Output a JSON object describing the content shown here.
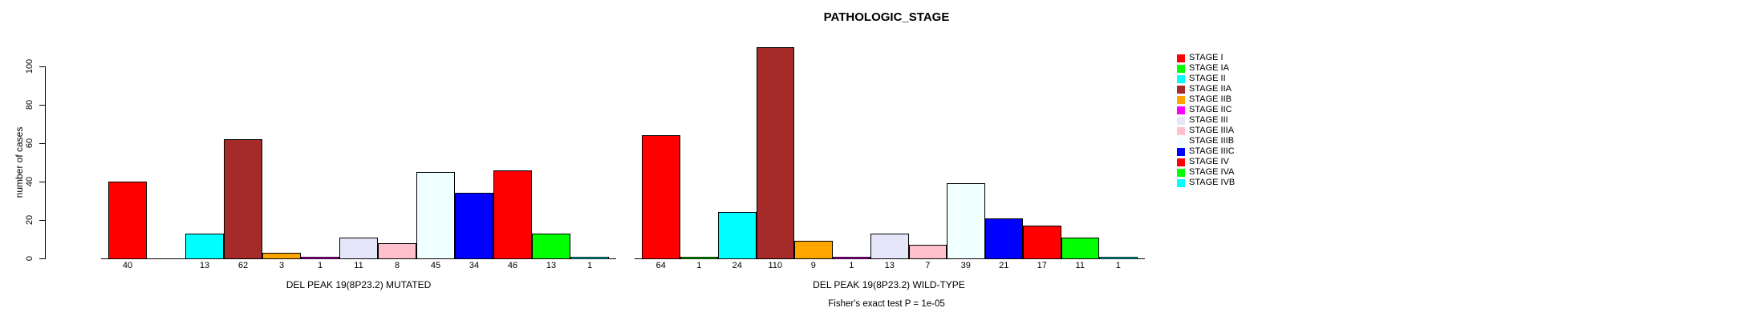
{
  "title": "PATHOLOGIC_STAGE",
  "footer": "Fisher's exact test P = 1e-05",
  "y_axis": {
    "label": "number of cases",
    "ticks": [
      0,
      20,
      40,
      60,
      80,
      100
    ]
  },
  "legend": {
    "entries": [
      {
        "label": "STAGE I",
        "color": "#FF0000"
      },
      {
        "label": "STAGE IA",
        "color": "#00FF00"
      },
      {
        "label": "STAGE II",
        "color": "#00FFFF"
      },
      {
        "label": "STAGE IIA",
        "color": "#A52A2A"
      },
      {
        "label": "STAGE IIB",
        "color": "#FFA500"
      },
      {
        "label": "STAGE IIC",
        "color": "#FF00FF"
      },
      {
        "label": "STAGE III",
        "color": "#E6E6FA"
      },
      {
        "label": "STAGE IIIA",
        "color": "#FFC0CB"
      },
      {
        "label": "STAGE IIIB",
        "color": "#F0FFFF"
      },
      {
        "label": "STAGE IIIC",
        "color": "#0000FF"
      },
      {
        "label": "STAGE IV",
        "color": "#FF0000"
      },
      {
        "label": "STAGE IVA",
        "color": "#00FF00"
      },
      {
        "label": "STAGE IVB",
        "color": "#00FFFF"
      }
    ]
  },
  "chart_data": [
    {
      "type": "bar",
      "xlabel": "DEL PEAK 19(8P23.2) MUTATED",
      "ylabel": "number of cases",
      "ylim": [
        0,
        100
      ],
      "grid": false,
      "legend_position": "right",
      "categories": [
        "STAGE I",
        "STAGE IA",
        "STAGE II",
        "STAGE IIA",
        "STAGE IIB",
        "STAGE IIC",
        "STAGE III",
        "STAGE IIIA",
        "STAGE IIIB",
        "STAGE IIIC",
        "STAGE IV",
        "STAGE IVA",
        "STAGE IVB"
      ],
      "values": [
        40,
        0,
        13,
        62,
        3,
        1,
        11,
        8,
        45,
        34,
        46,
        13,
        1
      ],
      "bar_labels": [
        "40",
        "",
        "13",
        "62",
        "3",
        "1",
        "11",
        "8",
        "45",
        "34",
        "46",
        "13",
        "1"
      ],
      "colors": [
        "#FF0000",
        "#00FF00",
        "#00FFFF",
        "#A52A2A",
        "#FFA500",
        "#FF00FF",
        "#E6E6FA",
        "#FFC0CB",
        "#F0FFFF",
        "#0000FF",
        "#FF0000",
        "#00FF00",
        "#00FFFF"
      ]
    },
    {
      "type": "bar",
      "xlabel": "DEL PEAK 19(8P23.2) WILD-TYPE",
      "ylabel": "number of cases",
      "ylim": [
        0,
        100
      ],
      "grid": false,
      "legend_position": "right",
      "categories": [
        "STAGE I",
        "STAGE IA",
        "STAGE II",
        "STAGE IIA",
        "STAGE IIB",
        "STAGE IIC",
        "STAGE III",
        "STAGE IIIA",
        "STAGE IIIB",
        "STAGE IIIC",
        "STAGE IV",
        "STAGE IVA",
        "STAGE IVB"
      ],
      "values": [
        64,
        1,
        24,
        110,
        9,
        1,
        13,
        7,
        39,
        21,
        17,
        11,
        1
      ],
      "bar_labels": [
        "64",
        "1",
        "24",
        "110",
        "9",
        "1",
        "13",
        "7",
        "39",
        "21",
        "17",
        "11",
        "1"
      ],
      "colors": [
        "#FF0000",
        "#00FF00",
        "#00FFFF",
        "#A52A2A",
        "#FFA500",
        "#FF00FF",
        "#E6E6FA",
        "#FFC0CB",
        "#F0FFFF",
        "#0000FF",
        "#FF0000",
        "#00FF00",
        "#00FFFF"
      ]
    }
  ]
}
